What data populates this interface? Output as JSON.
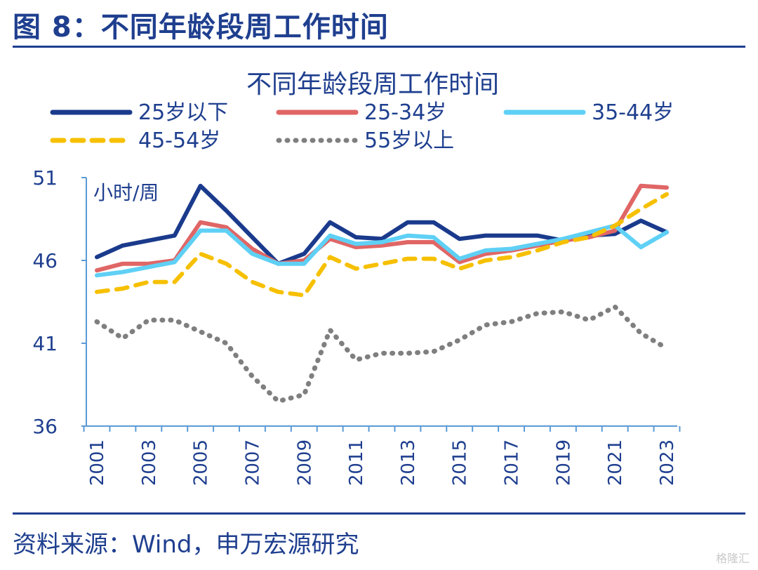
{
  "header": {
    "figure_title": "图 8：不同年龄段周工作时间"
  },
  "footer": {
    "source": "资料来源：Wind，申万宏源研究",
    "watermark": "格隆汇"
  },
  "chart_data": {
    "type": "line",
    "title": "不同年龄段周工作时间",
    "ylabel": "小时/周",
    "xlabel": "",
    "ylim": [
      36,
      51
    ],
    "yticks": [
      36,
      41,
      46,
      51
    ],
    "x": [
      2001,
      2002,
      2003,
      2004,
      2005,
      2006,
      2007,
      2008,
      2009,
      2010,
      2011,
      2012,
      2013,
      2014,
      2015,
      2016,
      2017,
      2018,
      2019,
      2020,
      2021,
      2022,
      2023
    ],
    "xtick_labels": [
      "2001",
      "2003",
      "2005",
      "2007",
      "2009",
      "2011",
      "2013",
      "2015",
      "2017",
      "2019",
      "2021",
      "2023"
    ],
    "grid": false,
    "legend_position": "top",
    "series": [
      {
        "name": "25岁以下",
        "color": "#1a3a8c",
        "style": "solid",
        "values": [
          46.2,
          46.9,
          47.2,
          47.5,
          50.5,
          49.0,
          47.4,
          45.8,
          46.4,
          48.3,
          47.4,
          47.3,
          48.3,
          48.3,
          47.3,
          47.5,
          47.5,
          47.5,
          47.2,
          47.5,
          47.6,
          48.4,
          47.7
        ]
      },
      {
        "name": "25-34岁",
        "color": "#e06666",
        "style": "solid",
        "values": [
          45.4,
          45.8,
          45.8,
          46.0,
          48.3,
          48.0,
          46.7,
          45.8,
          46.0,
          47.3,
          46.8,
          46.9,
          47.1,
          47.1,
          45.9,
          46.4,
          46.6,
          46.9,
          47.2,
          47.4,
          47.8,
          50.5,
          50.4
        ]
      },
      {
        "name": "35-44岁",
        "color": "#5fd0f5",
        "style": "solid",
        "values": [
          45.1,
          45.3,
          45.6,
          45.9,
          47.8,
          47.8,
          46.4,
          45.8,
          45.8,
          47.5,
          47.0,
          47.1,
          47.5,
          47.4,
          46.1,
          46.6,
          46.7,
          47.0,
          47.3,
          47.7,
          48.1,
          46.8,
          47.7
        ]
      },
      {
        "name": "45-54岁",
        "color": "#f6c000",
        "style": "dashed",
        "values": [
          44.1,
          44.3,
          44.7,
          44.7,
          46.4,
          45.8,
          44.7,
          44.1,
          43.9,
          46.2,
          45.5,
          45.8,
          46.1,
          46.1,
          45.5,
          46.0,
          46.2,
          46.6,
          47.1,
          47.4,
          48.1,
          49.1,
          50.0
        ]
      },
      {
        "name": "55岁以上",
        "color": "#7f7f7f",
        "style": "dotted",
        "values": [
          42.3,
          41.3,
          42.4,
          42.4,
          41.7,
          41.0,
          39.0,
          37.5,
          37.9,
          41.8,
          40.0,
          40.4,
          40.4,
          40.5,
          41.2,
          42.1,
          42.3,
          42.8,
          42.9,
          42.4,
          43.2,
          41.6,
          40.7
        ]
      }
    ]
  }
}
